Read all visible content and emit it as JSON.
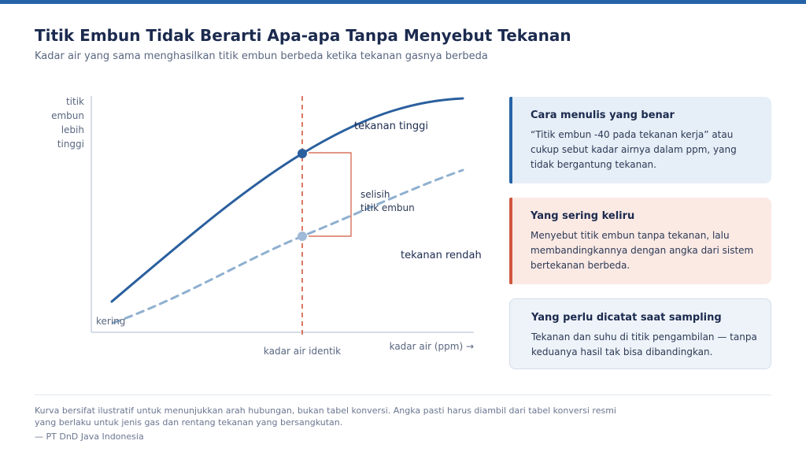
{
  "header": {
    "title": "Titik Embun Tidak Berarti Apa-apa Tanpa Menyebut Tekanan",
    "subtitle": "Kadar air yang sama menghasilkan titik embun berbeda ketika tekanan gasnya berbeda"
  },
  "diagram": {
    "y_label_lines": [
      "titik",
      "embun",
      "lebih",
      "tinggi"
    ],
    "x_label": "kadar air (ppm) →",
    "low_end_label": "kering",
    "marker_label": "kadar air identik",
    "curve_high_label": "tekanan tinggi",
    "curve_low_label": "tekanan rendah",
    "gap_label_lines": [
      "selisih",
      "titik embun"
    ]
  },
  "cards": {
    "correct": {
      "title": "Cara menulis yang benar",
      "body": "“Titik embun -40 pada tekanan kerja” atau cukup sebut kadar airnya dalam ppm, yang tidak bergantung tekanan."
    },
    "wrong": {
      "title": "Yang sering keliru",
      "body": "Menyebut titik embun tanpa tekanan, lalu membandingkannya dengan angka dari sistem bertekanan berbeda."
    },
    "note": {
      "title": "Yang perlu dicatat saat sampling",
      "body": "Tekanan dan suhu di titik pengambilan — tanpa keduanya hasil tak bisa dibandingkan."
    }
  },
  "footer": {
    "note": "Kurva bersifat ilustratif untuk menunjukkan arah hubungan, bukan tabel konversi. Angka pasti harus diambil dari tabel konversi resmi yang berlaku untuk jenis gas dan rentang tekanan yang bersangkutan.",
    "credit": "— PT DnD Java Indonesia"
  },
  "colors": {
    "high_pressure": "#2a5f9e",
    "low_pressure": "#8fb0d0",
    "marker": "#d0573f",
    "accent_blue": "#2563a8",
    "accent_red": "#d0573f"
  }
}
